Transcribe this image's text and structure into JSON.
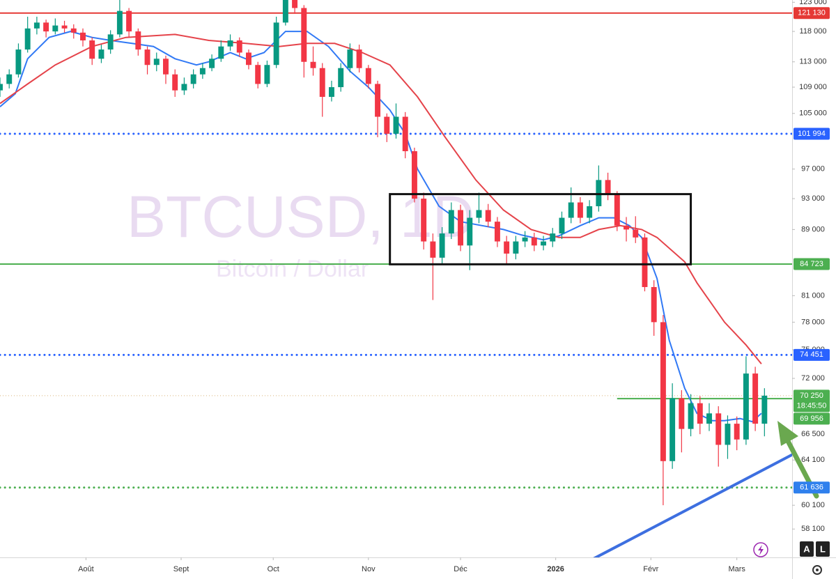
{
  "chart_data": {
    "type": "candlestick",
    "symbol_watermark": "BTCUSD, 1D",
    "name_watermark": "Bitcoin / Dollar",
    "log_scale": true,
    "grid": false,
    "up_color": "#089981",
    "down_color": "#f23645",
    "x": [
      0,
      3,
      6,
      9,
      12,
      15,
      18,
      21,
      24,
      27,
      30,
      33,
      36,
      39,
      42,
      45,
      48,
      51,
      54,
      57,
      60,
      63,
      66,
      69,
      72,
      75,
      78,
      81,
      84,
      87,
      90,
      93,
      96,
      99,
      102,
      105,
      108,
      111,
      114,
      117,
      120,
      123,
      126,
      129,
      132,
      135,
      138,
      141,
      144,
      147,
      150,
      153,
      156,
      159,
      162,
      165,
      168,
      171,
      174,
      177,
      180,
      183,
      186,
      189,
      192,
      195,
      198,
      201,
      204,
      207,
      210,
      213,
      216,
      219,
      222,
      225,
      228,
      231,
      234,
      237,
      240,
      243,
      246,
      249
    ],
    "candles": [
      [
        108500,
        110500,
        107500,
        109500
      ],
      [
        109500,
        111800,
        108800,
        111000
      ],
      [
        111000,
        116000,
        110500,
        115000
      ],
      [
        115000,
        120500,
        114500,
        118500
      ],
      [
        118500,
        120500,
        117500,
        119500
      ],
      [
        119500,
        120000,
        117000,
        118000
      ],
      [
        118000,
        120200,
        117500,
        119000
      ],
      [
        119000,
        119800,
        117800,
        118500
      ],
      [
        118500,
        119200,
        116800,
        117800
      ],
      [
        117800,
        118500,
        115500,
        116500
      ],
      [
        116500,
        117000,
        112500,
        113500
      ],
      [
        113500,
        115800,
        112800,
        115000
      ],
      [
        115000,
        118200,
        114300,
        117500
      ],
      [
        117500,
        124500,
        117000,
        121500
      ],
      [
        121500,
        122000,
        117000,
        118000
      ],
      [
        118000,
        118500,
        114000,
        115000
      ],
      [
        115000,
        115500,
        111000,
        112500
      ],
      [
        112500,
        114500,
        111500,
        113500
      ],
      [
        113500,
        114000,
        109500,
        111000
      ],
      [
        111000,
        111800,
        107500,
        108500
      ],
      [
        108500,
        110500,
        107800,
        109500
      ],
      [
        109500,
        111800,
        108800,
        111000
      ],
      [
        111000,
        112800,
        110300,
        112000
      ],
      [
        112000,
        114200,
        111500,
        113500
      ],
      [
        113500,
        116500,
        113000,
        115500
      ],
      [
        115500,
        117500,
        114800,
        116500
      ],
      [
        116500,
        117000,
        113800,
        114500
      ],
      [
        114500,
        115000,
        111800,
        112500
      ],
      [
        112500,
        113000,
        108800,
        109500
      ],
      [
        109500,
        113200,
        109000,
        112500
      ],
      [
        112500,
        120500,
        112000,
        119500
      ],
      [
        119500,
        125500,
        119000,
        123500
      ],
      [
        123500,
        124500,
        121000,
        122000
      ],
      [
        122000,
        122500,
        110500,
        113000
      ],
      [
        113000,
        115500,
        110800,
        112000
      ],
      [
        112000,
        112800,
        104500,
        107500
      ],
      [
        107500,
        110000,
        106800,
        109000
      ],
      [
        109000,
        112800,
        108300,
        112000
      ],
      [
        112000,
        116000,
        111300,
        115000
      ],
      [
        115000,
        115800,
        111300,
        112000
      ],
      [
        112000,
        112500,
        108800,
        109500
      ],
      [
        109500,
        110000,
        101500,
        104500
      ],
      [
        104500,
        105000,
        100800,
        102000
      ],
      [
        102000,
        106500,
        101300,
        104500
      ],
      [
        104500,
        105200,
        98500,
        99500
      ],
      [
        99500,
        100000,
        92500,
        93000
      ],
      [
        93000,
        93800,
        86500,
        87500
      ],
      [
        87500,
        88500,
        80500,
        85500
      ],
      [
        85500,
        89300,
        84800,
        88500
      ],
      [
        88500,
        92500,
        87800,
        91500
      ],
      [
        91500,
        92200,
        86300,
        87000
      ],
      [
        87000,
        91500,
        84000,
        90500
      ],
      [
        90500,
        93800,
        89800,
        91500
      ],
      [
        91500,
        92300,
        89300,
        90000
      ],
      [
        90000,
        90600,
        86800,
        87500
      ],
      [
        87500,
        88200,
        84800,
        86000
      ],
      [
        86000,
        88200,
        85300,
        87500
      ],
      [
        87500,
        88800,
        86800,
        88000
      ],
      [
        88000,
        88600,
        86300,
        87000
      ],
      [
        87000,
        88200,
        86400,
        87500
      ],
      [
        87500,
        89200,
        86800,
        88500
      ],
      [
        88500,
        91300,
        87800,
        90500
      ],
      [
        90500,
        94500,
        89800,
        92500
      ],
      [
        92500,
        93200,
        89800,
        90500
      ],
      [
        90500,
        92800,
        89800,
        92000
      ],
      [
        92000,
        97500,
        91300,
        95500
      ],
      [
        95500,
        96500,
        92800,
        93500
      ],
      [
        93500,
        94000,
        88800,
        89500
      ],
      [
        89500,
        90600,
        87500,
        89000
      ],
      [
        89000,
        90700,
        87300,
        88000
      ],
      [
        88000,
        88500,
        81500,
        82000
      ],
      [
        82000,
        82800,
        76500,
        78000
      ],
      [
        78000,
        78800,
        60100,
        64000
      ],
      [
        64000,
        71500,
        63300,
        70000
      ],
      [
        70000,
        70800,
        64800,
        67000
      ],
      [
        67000,
        70400,
        66300,
        69500
      ],
      [
        69500,
        70200,
        66500,
        67500
      ],
      [
        67500,
        69500,
        66800,
        68500
      ],
      [
        68500,
        69200,
        63500,
        65500
      ],
      [
        65500,
        68300,
        64200,
        67500
      ],
      [
        67500,
        68200,
        65000,
        66000
      ],
      [
        66000,
        74300,
        65500,
        72500
      ],
      [
        72500,
        73200,
        66800,
        67500
      ],
      [
        67500,
        71000,
        66300,
        70250
      ]
    ],
    "xlim": [
      0,
      258
    ],
    "xticks": [
      {
        "value": 28,
        "label": "Août"
      },
      {
        "value": 59,
        "label": "Sept"
      },
      {
        "value": 89,
        "label": "Oct"
      },
      {
        "value": 120,
        "label": "Nov"
      },
      {
        "value": 150,
        "label": "Déc"
      },
      {
        "value": 181,
        "label": "2026"
      },
      {
        "value": 212,
        "label": "Févr"
      },
      {
        "value": 240,
        "label": "Mars"
      }
    ],
    "ylim": [
      55800,
      123400
    ],
    "yticks": [
      {
        "value": 123000,
        "label": "123 000"
      },
      {
        "value": 118000,
        "label": "118 000"
      },
      {
        "value": 113000,
        "label": "113 000"
      },
      {
        "value": 109000,
        "label": "109 000"
      },
      {
        "value": 105000,
        "label": "105 000"
      },
      {
        "value": 97000,
        "label": "97 000"
      },
      {
        "value": 93000,
        "label": "93 000"
      },
      {
        "value": 89000,
        "label": "89 000"
      },
      {
        "value": 81000,
        "label": "81 000"
      },
      {
        "value": 78000,
        "label": "78 000"
      },
      {
        "value": 75000,
        "label": "75 000"
      },
      {
        "value": 72000,
        "label": "72 000"
      },
      {
        "value": 66500,
        "label": "66 500"
      },
      {
        "value": 64100,
        "label": "64 100"
      },
      {
        "value": 60100,
        "label": "60 100"
      },
      {
        "value": 58100,
        "label": "58 100"
      }
    ],
    "lines": [
      {
        "color": "#3179f5",
        "x": [
          0,
          5,
          9,
          16,
          23,
          30,
          36,
          43,
          50,
          57,
          64,
          68,
          75,
          80,
          86,
          93,
          100,
          107,
          114,
          120,
          127,
          132,
          136,
          143,
          150,
          157,
          164,
          170,
          177,
          182,
          189,
          195,
          200,
          205,
          209,
          214,
          218,
          223,
          227,
          232,
          236,
          241,
          245,
          248
        ],
        "values": [
          106000,
          108000,
          113500,
          117000,
          118000,
          117000,
          116500,
          116000,
          115500,
          113500,
          112500,
          113000,
          114500,
          113500,
          114500,
          118000,
          118000,
          115500,
          111500,
          109000,
          105500,
          102000,
          97000,
          92000,
          90000,
          89500,
          89000,
          88300,
          87700,
          88200,
          89500,
          90500,
          90500,
          89500,
          88000,
          83000,
          76000,
          71000,
          68500,
          67800,
          67800,
          68000,
          67700,
          68500
        ]
      },
      {
        "color": "#e5434a",
        "x": [
          0,
          9,
          18,
          30,
          41,
          57,
          68,
          80,
          91,
          100,
          109,
          118,
          127,
          136,
          145,
          155,
          164,
          173,
          182,
          189,
          195,
          202,
          209,
          214,
          223,
          227,
          236,
          243,
          248
        ],
        "values": [
          106500,
          109500,
          112500,
          115500,
          117000,
          117500,
          116500,
          116000,
          115500,
          116000,
          116000,
          114500,
          112500,
          107500,
          101500,
          95500,
          91500,
          89000,
          88000,
          88000,
          89000,
          89500,
          89000,
          88000,
          85000,
          82500,
          78000,
          75500,
          73500
        ]
      }
    ],
    "levels": [
      {
        "value": 121130,
        "label": "121 130",
        "color": "#e53935",
        "style": "solid"
      },
      {
        "value": 101994,
        "label": "101 994",
        "color": "#2962ff",
        "style": "dotted"
      },
      {
        "value": 84723,
        "label": "84 723",
        "color": "#4caf50",
        "style": "solid"
      },
      {
        "value": 74451,
        "label": "74 451",
        "color": "#2962ff",
        "style": "dotted"
      },
      {
        "value": 69956,
        "label": "69 956",
        "color": "#4caf50",
        "style": "solid",
        "from": 201
      },
      {
        "value": 61636,
        "label": "61 636",
        "color": "#4caf50",
        "label_color": "#2f80ed",
        "style": "dotted"
      }
    ],
    "current": {
      "value": 70250,
      "label": "70 250",
      "countdown": "18:45:50",
      "color": "#4caf50"
    },
    "box": {
      "x": [
        127,
        225
      ],
      "y": [
        84700,
        93600
      ]
    },
    "trendline": {
      "x": [
        181,
        259
      ],
      "y": [
        54150,
        64730
      ],
      "color": "#3d6fe0"
    },
    "buttons": [
      "A",
      "L"
    ]
  }
}
